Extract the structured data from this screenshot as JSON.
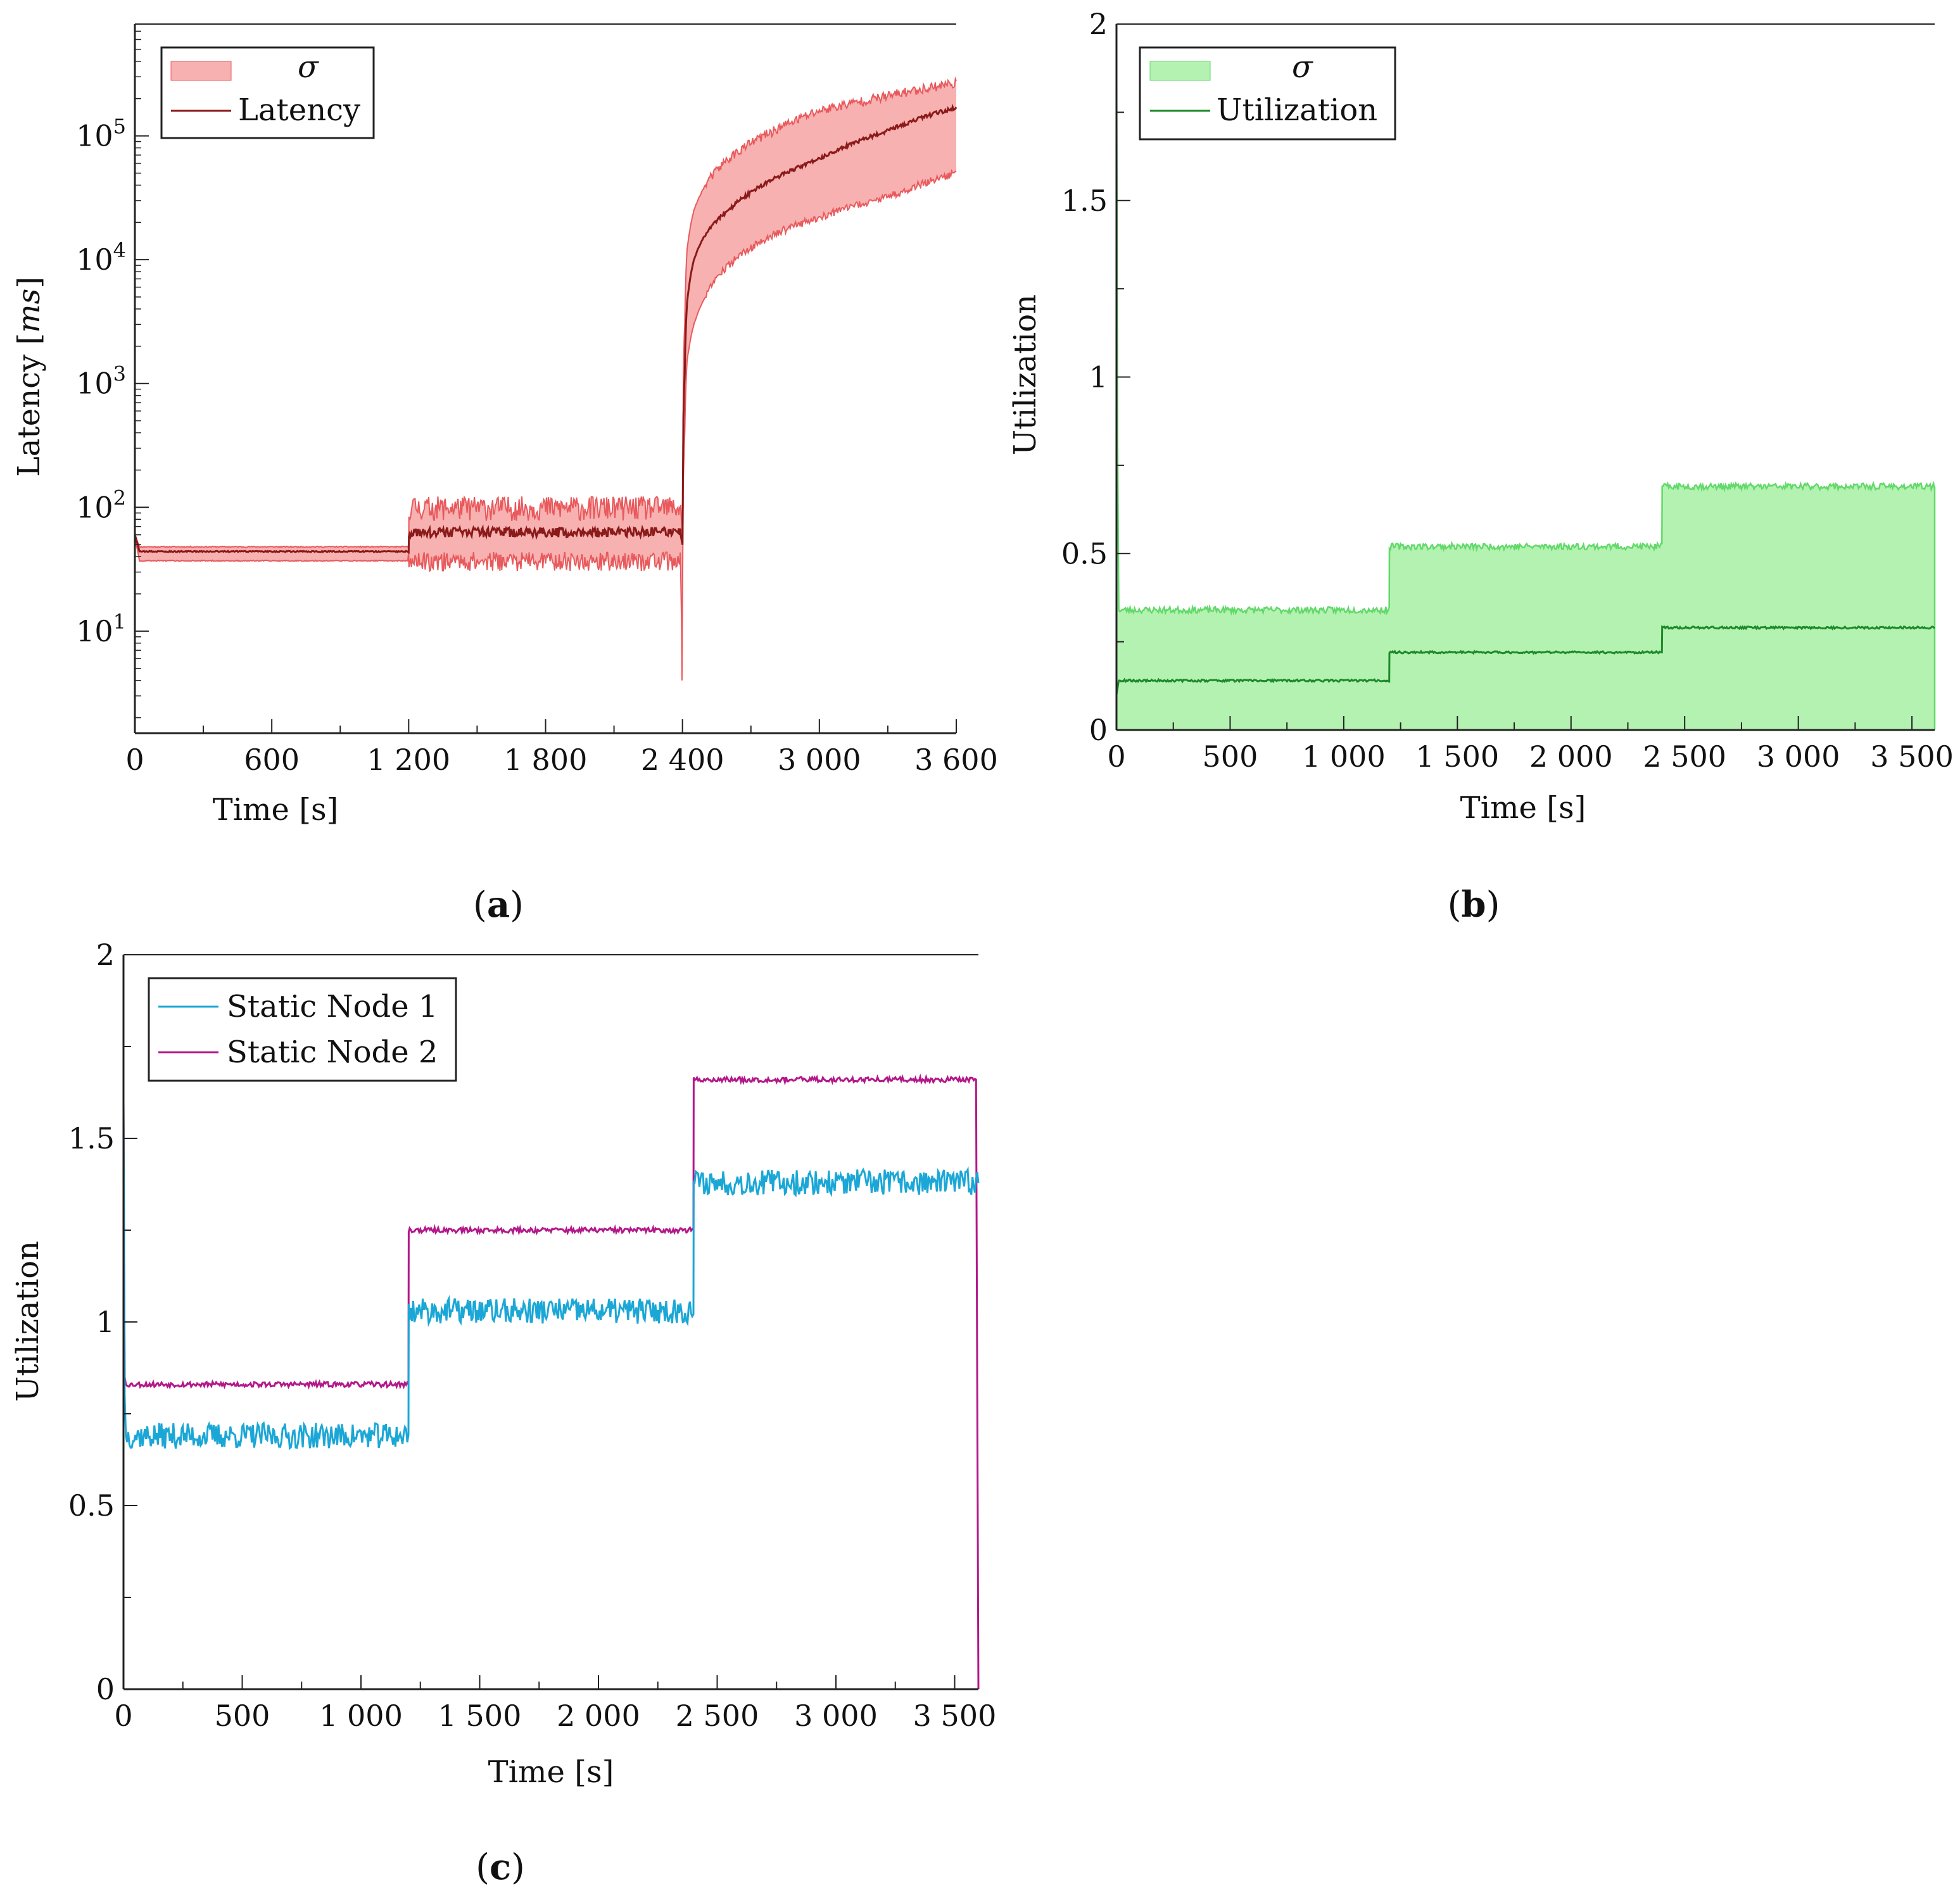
{
  "colors": {
    "latency_band": "#f7b1b1",
    "latency_band_edge": "#e8595c",
    "latency_line": "#8b1a1a",
    "util_band": "#b4f2b1",
    "util_band_edge": "#62d96a",
    "util_line": "#1e8a2a",
    "node1": "#1ba7d6",
    "node2": "#b3188a",
    "axis": "#222222"
  },
  "chart_data": [
    {
      "id": "a",
      "type": "line",
      "panel_label": "a",
      "xlabel": "Time [s]",
      "ylabel": "Latency [ms]",
      "ylabel_parts": {
        "prefix": "Latency [",
        "unit": "ms",
        "suffix": "]"
      },
      "yscale": "log",
      "xlim": [
        0,
        3600
      ],
      "ylim": [
        1.5,
        800000
      ],
      "xticks": [
        0,
        600,
        1200,
        1800,
        2400,
        3000,
        3600
      ],
      "xticklabels": [
        "0",
        "600",
        "1 200",
        "1 800",
        "2 400",
        "3 000",
        "3 600"
      ],
      "yticks": [
        {
          "value": 10,
          "base": "10",
          "exp": "1"
        },
        {
          "value": 100,
          "base": "10",
          "exp": "2"
        },
        {
          "value": 1000,
          "base": "10",
          "exp": "3"
        },
        {
          "value": 10000,
          "base": "10",
          "exp": "4"
        },
        {
          "value": 100000,
          "base": "10",
          "exp": "5"
        }
      ],
      "legend": [
        {
          "label": "σ",
          "kind": "band"
        },
        {
          "label": "Latency",
          "kind": "line"
        }
      ],
      "legend_position": "top-left",
      "series": {
        "latency": {
          "x": [
            0,
            20,
            1200,
            1201,
            2390,
            2400,
            2410,
            2420,
            2450,
            2500,
            2600,
            2800,
            3000,
            3300,
            3600
          ],
          "y": [
            60,
            44,
            44,
            63,
            63,
            50,
            1200,
            4500,
            10000,
            16000,
            25000,
            45000,
            65000,
            110000,
            170000
          ]
        },
        "sigma_upper": {
          "x": [
            0,
            20,
            1200,
            1201,
            2390,
            2400,
            2410,
            2420,
            2450,
            2500,
            2600,
            2800,
            3000,
            3300,
            3600
          ],
          "y": [
            60,
            48,
            48,
            100,
            100,
            60,
            3000,
            12000,
            25000,
            40000,
            65000,
            110000,
            160000,
            210000,
            270000
          ]
        },
        "sigma_lower": {
          "x": [
            0,
            20,
            1200,
            1201,
            2390,
            2398,
            2400,
            2410,
            2420,
            2450,
            2500,
            2600,
            2800,
            3000,
            3300,
            3600
          ],
          "y": [
            55,
            37,
            37,
            37,
            37,
            4,
            20,
            400,
            1500,
            3000,
            5000,
            9000,
            16000,
            22000,
            32000,
            50000
          ]
        }
      }
    },
    {
      "id": "b",
      "type": "line",
      "panel_label": "b",
      "xlabel": "Time [s]",
      "ylabel": "Utilization",
      "xlim": [
        0,
        3600
      ],
      "ylim": [
        0,
        2
      ],
      "xticks": [
        0,
        500,
        1000,
        1500,
        2000,
        2500,
        3000,
        3500
      ],
      "xticklabels": [
        "0",
        "500",
        "1 000",
        "1 500",
        "2 000",
        "2 500",
        "3 000",
        "3 500"
      ],
      "yticks": [
        0,
        0.5,
        1,
        1.5,
        2
      ],
      "yticklabels": [
        "0",
        "0.5",
        "1",
        "1.5",
        "2"
      ],
      "legend": [
        {
          "label": "σ",
          "kind": "band"
        },
        {
          "label": "Utilization",
          "kind": "line"
        }
      ],
      "legend_position": "top-left",
      "series": {
        "utilization": {
          "x": [
            0,
            10,
            1200,
            1201,
            2400,
            2401,
            3600
          ],
          "y": [
            0.1,
            0.14,
            0.14,
            0.22,
            0.22,
            0.29,
            0.29
          ]
        },
        "sigma_upper": {
          "x": [
            0,
            5,
            10,
            1200,
            1201,
            2400,
            2401,
            3600
          ],
          "y": [
            2.0,
            0.8,
            0.34,
            0.34,
            0.52,
            0.52,
            0.69,
            0.69
          ]
        },
        "sigma_lower": {
          "x": [
            0,
            3600
          ],
          "y": [
            0,
            0
          ]
        }
      }
    },
    {
      "id": "c",
      "type": "line",
      "panel_label": "c",
      "xlabel": "Time [s]",
      "ylabel": "Utilization",
      "xlim": [
        0,
        3600
      ],
      "ylim": [
        0,
        2
      ],
      "xticks": [
        0,
        500,
        1000,
        1500,
        2000,
        2500,
        3000,
        3500
      ],
      "xticklabels": [
        "0",
        "500",
        "1 000",
        "1 500",
        "2 000",
        "2 500",
        "3 000",
        "3 500"
      ],
      "yticks": [
        0,
        0.5,
        1,
        1.5,
        2
      ],
      "yticklabels": [
        "0",
        "0.5",
        "1",
        "1.5",
        "2"
      ],
      "legend": [
        {
          "label": "Static Node 1",
          "kind": "line"
        },
        {
          "label": "Static Node 2",
          "kind": "line"
        }
      ],
      "legend_position": "top-left",
      "series": [
        {
          "name": "Static Node 1",
          "x": [
            0,
            5,
            10,
            1200,
            1201,
            2400,
            2401,
            3590,
            3600
          ],
          "y": [
            1.6,
            0.8,
            0.69,
            0.69,
            1.03,
            1.03,
            1.38,
            1.38,
            1.38
          ]
        },
        {
          "name": "Static Node 2",
          "x": [
            0,
            5,
            10,
            1200,
            1201,
            2400,
            2401,
            3590,
            3600
          ],
          "y": [
            1.6,
            0.85,
            0.83,
            0.83,
            1.25,
            1.25,
            1.66,
            1.66,
            0
          ]
        }
      ]
    }
  ]
}
